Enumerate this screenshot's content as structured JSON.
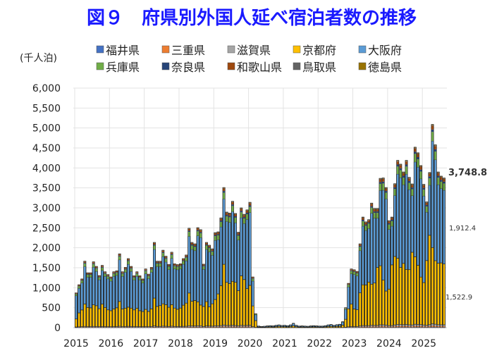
{
  "title": "図９　府県別外国人延べ宿泊者数の推移",
  "chart_data": {
    "type": "bar",
    "stacked": true,
    "title": "図９　府県別外国人延べ宿泊者数の推移",
    "ylabel": "(千人泊)",
    "xlabel": "",
    "ylim": [
      0,
      6000
    ],
    "yticks": [
      "0",
      "500",
      "1,000",
      "1,500",
      "2,000",
      "2,500",
      "3,000",
      "3,500",
      "4,000",
      "4,500",
      "5,000",
      "5,500",
      "6,000"
    ],
    "ytick_values": [
      0,
      500,
      1000,
      1500,
      2000,
      2500,
      3000,
      3500,
      4000,
      4500,
      5000,
      5500,
      6000
    ],
    "xticks": [
      "2015",
      "2016",
      "2017",
      "2018",
      "2019",
      "2020",
      "2021",
      "2022",
      "2023",
      "2024",
      "2025"
    ],
    "period": "monthly, 2015-01 to 2025-08",
    "grid": true,
    "legend_position": "top",
    "totals": [
      870,
      1075,
      1220,
      1665,
      1375,
      1375,
      1650,
      1535,
      1305,
      1560,
      1400,
      1330,
      1270,
      1400,
      1425,
      1850,
      1400,
      1510,
      1730,
      1535,
      1300,
      1400,
      1300,
      1220,
      1470,
      1340,
      1510,
      2135,
      1665,
      1665,
      1940,
      1790,
      1585,
      1890,
      1600,
      1580,
      1600,
      1730,
      1820,
      2490,
      2135,
      2100,
      2505,
      2455,
      1590,
      2135,
      2065,
      1975,
      2380,
      2400,
      2750,
      3510,
      2895,
      2870,
      3165,
      2860,
      2390,
      3000,
      2840,
      2950,
      3140,
      1270,
      350,
      40,
      30,
      35,
      45,
      50,
      45,
      60,
      70,
      55,
      60,
      50,
      70,
      110,
      60,
      40,
      45,
      40,
      35,
      45,
      50,
      45,
      40,
      40,
      50,
      70,
      80,
      60,
      75,
      85,
      150,
      500,
      1110,
      1470,
      1450,
      1410,
      2100,
      2770,
      2650,
      2705,
      3120,
      2985,
      2985,
      3740,
      3750,
      3510,
      2680,
      2770,
      3605,
      4190,
      4095,
      3900,
      4190,
      3765,
      3600,
      4520,
      4380,
      4060,
      3590,
      3150,
      3885,
      5090,
      4580,
      3900,
      3795,
      3748.8
    ],
    "series": [
      {
        "name": "福井県",
        "color": "#4472C4",
        "share": 0.003
      },
      {
        "name": "三重県",
        "color": "#ED7D31",
        "share": 0.006
      },
      {
        "name": "滋賀県",
        "color": "#A5A5A5",
        "share": 0.01
      },
      {
        "name": "京都府",
        "color": "#FFC000",
        "values": [
          200,
          350,
          420,
          560,
          480,
          470,
          540,
          520,
          450,
          560,
          480,
          420,
          400,
          440,
          470,
          620,
          440,
          460,
          480,
          460,
          420,
          460,
          400,
          380,
          430,
          380,
          440,
          700,
          500,
          520,
          560,
          540,
          480,
          540,
          460,
          430,
          460,
          530,
          580,
          820,
          620,
          640,
          600,
          520,
          500,
          610,
          480,
          560,
          660,
          800,
          1000,
          1520,
          1080,
          1050,
          1100,
          1080,
          880,
          1240,
          1150,
          920,
          1000,
          520,
          170,
          15,
          10,
          12,
          18,
          20,
          18,
          25,
          30,
          22,
          25,
          20,
          28,
          40,
          22,
          15,
          18,
          15,
          14,
          18,
          20,
          18,
          15,
          15,
          20,
          28,
          30,
          25,
          30,
          35,
          60,
          200,
          450,
          560,
          440,
          420,
          830,
          1020,
          1020,
          1090,
          1030,
          1060,
          1450,
          1480,
          1120,
          850,
          915,
          1520,
          1715,
          1660,
          1430,
          1535,
          1380,
          1380,
          1820,
          1690,
          1480,
          1190,
          1060,
          1620,
          2240,
          1910,
          1590,
          1540,
          1550,
          1522.9
        ]
      },
      {
        "name": "大阪府",
        "color": "#5B9BD5",
        "remainder": true
      },
      {
        "name": "兵庫県",
        "color": "#70AD47",
        "share": 0.045
      },
      {
        "name": "奈良県",
        "color": "#264478",
        "share": 0.012
      },
      {
        "name": "和歌山県",
        "color": "#9E480E",
        "share": 0.018
      },
      {
        "name": "鳥取県",
        "color": "#636363",
        "share": 0.004
      },
      {
        "name": "徳島県",
        "color": "#997300",
        "share": 0.003
      }
    ],
    "annotations": {
      "last_total": "3,748.8",
      "last_osaka": "1,912.4",
      "last_kyoto": "1,522.9"
    }
  }
}
